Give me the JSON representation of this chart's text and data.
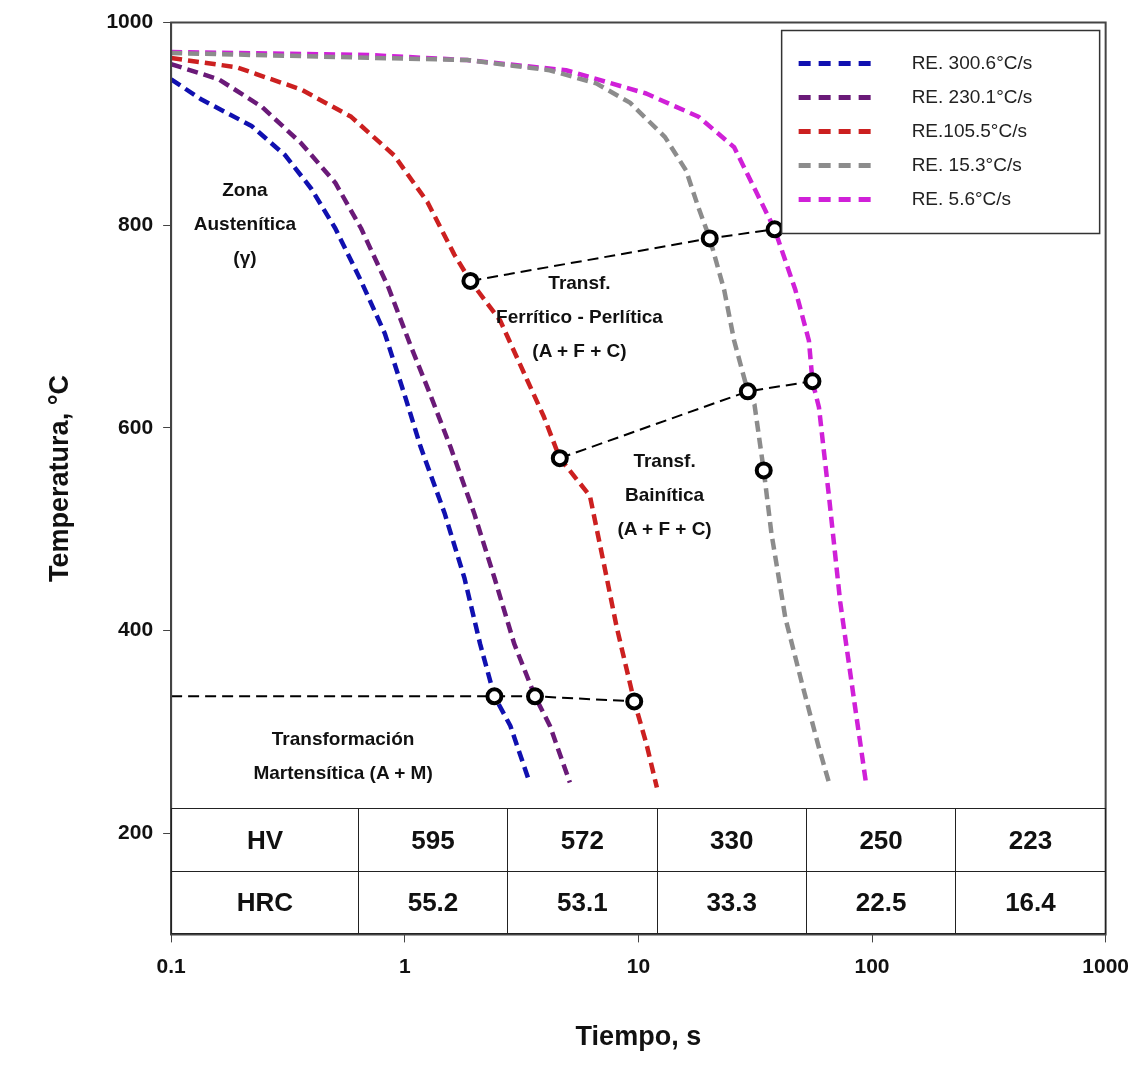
{
  "chart_data": {
    "type": "line",
    "xlabel": "Tiempo, s",
    "ylabel": "Temperatura, °C",
    "log": "x",
    "xlim": [
      0.1,
      1000
    ],
    "xticks": [
      0.1,
      1,
      10,
      100,
      1000
    ],
    "ylim": [
      100,
      1000
    ],
    "yticks": [
      200,
      400,
      600,
      800,
      1000
    ],
    "grid": false,
    "legend": "top right",
    "marker": "none",
    "line_style": "dashed",
    "series": [
      {
        "name": "RE. 300.6°C/s",
        "color": "#1010b0",
        "x": [
          0.1,
          0.135,
          0.221,
          0.308,
          0.398,
          0.504,
          0.65,
          0.822,
          1.0,
          1.17,
          1.48,
          1.8,
          2.1,
          2.42,
          2.83,
          3.4
        ],
        "values": [
          944,
          924,
          898,
          869,
          836,
          797,
          745,
          693,
          632,
          581,
          516,
          452,
          387,
          335,
          306,
          252
        ]
      },
      {
        "name": "RE. 230.1°C/s",
        "color": "#6a1a78",
        "x": [
          0.1,
          0.16,
          0.244,
          0.36,
          0.504,
          0.65,
          0.85,
          1.06,
          1.29,
          1.57,
          1.98,
          2.42,
          2.94,
          3.61,
          4.18,
          5.09
        ],
        "values": [
          959,
          944,
          917,
          881,
          842,
          797,
          739,
          681,
          632,
          581,
          516,
          452,
          387,
          335,
          306,
          250
        ]
      },
      {
        "name": "RE.105.5°C/s",
        "color": "#cc2020",
        "x": [
          0.1,
          0.19,
          0.36,
          0.59,
          0.9,
          1.25,
          1.63,
          1.91,
          2.56,
          3.33,
          3.94,
          4.61,
          6.2,
          7.1,
          8.08,
          9.6,
          10.8,
          12
        ],
        "values": [
          965,
          956,
          934,
          907,
          869,
          823,
          771,
          745,
          706,
          648,
          611,
          570,
          533,
          467,
          403,
          330,
          289,
          245
        ]
      },
      {
        "name": "RE. 15.3°C/s",
        "color": "#8c8c8c",
        "x": [
          0.1,
          1.85,
          4.17,
          6.6,
          9.2,
          13,
          16,
          18.1,
          20.2,
          23.3,
          25.7,
          29.4,
          31.4,
          34.4,
          37.1,
          42.6,
          50.5,
          59.3,
          65.6
        ],
        "values": [
          970,
          963,
          953,
          940,
          921,
          887,
          854,
          817,
          787,
          736,
          686,
          636,
          623,
          558,
          496,
          412,
          345,
          284,
          249
        ]
      },
      {
        "name": "RE. 5.6°C/s",
        "color": "#d020d8",
        "x": [
          0.1,
          0.7,
          1.85,
          4.9,
          10.8,
          18.1,
          25.7,
          38.3,
          47,
          53.7,
          55.6,
          59.3,
          65.6,
          73.1,
          84.2,
          94.3
        ],
        "values": [
          971,
          968,
          963,
          953,
          930,
          907,
          877,
          796,
          736,
          686,
          646,
          620,
          530,
          428,
          328,
          249
        ]
      },
      {
        "color": "#000000",
        "x": [
          0.1,
          2.42,
          3.61,
          9.6
        ],
        "values": [
          335,
          335,
          335,
          330
        ]
      },
      {
        "color": "#000000",
        "x": [
          1.91,
          20.2,
          38.3
        ],
        "values": [
          745,
          787,
          796
        ]
      },
      {
        "color": "#000000",
        "x": [
          4.61,
          29.4,
          55.6
        ],
        "values": [
          570,
          636,
          646
        ]
      },
      {
        "color": "#000000",
        "type": "scatter",
        "marker": "circle",
        "x": [
          2.42,
          3.61,
          9.6,
          1.91,
          20.2,
          38.3,
          4.61,
          29.4,
          55.6,
          34.4
        ],
        "values": [
          335,
          335,
          330,
          745,
          787,
          796,
          570,
          636,
          646,
          558
        ]
      }
    ],
    "annotations": [
      "Zona\nAustenítica\n(γ)",
      "Transf.\nFerrítico - Perlítica\n(A + F + C)",
      "Transf.\nBainítica\n(A + F + C)",
      "Transformación\nMartensítica (A + M)",
      "HV",
      "595",
      "572",
      "330",
      "250",
      "223",
      "HRC",
      "55.2",
      "53.1",
      "33.3",
      "22.5",
      "16.4"
    ]
  }
}
